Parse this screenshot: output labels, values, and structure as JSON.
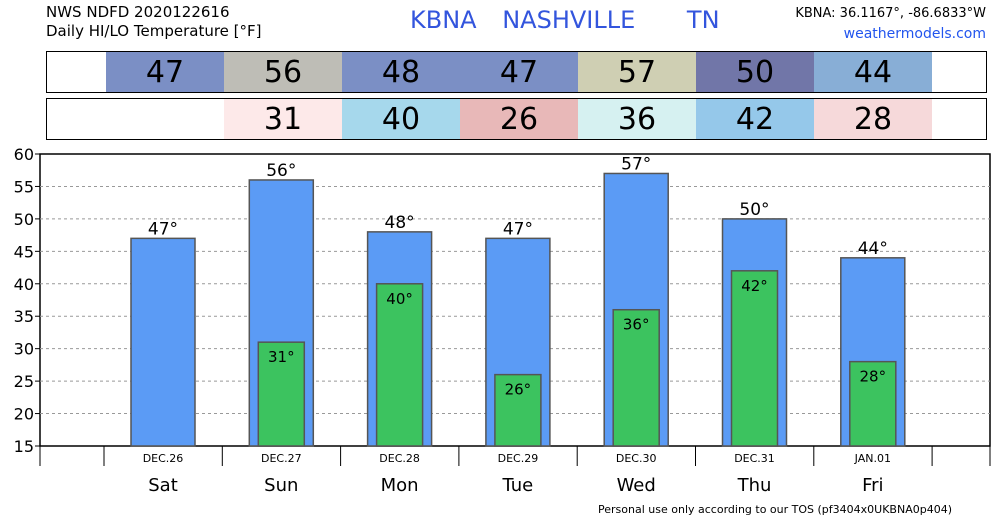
{
  "header": {
    "line1": "NWS NDFD 2020122616",
    "line2": "Daily HI/LO Temperature [°F]",
    "station": "KBNA",
    "city": "NASHVILLE",
    "state": "TN",
    "coords": "KBNA: 36.1167°, -86.6833°W",
    "site": "weathermodels.com"
  },
  "colors": {
    "hi_bar": "#5b9bf5",
    "lo_bar": "#3cc35f",
    "hi_cells": [
      "#7b8fc5",
      "#bebdb6",
      "#7b8fc5",
      "#7b8fc5",
      "#cfcfb3",
      "#7176a8",
      "#88aed6"
    ],
    "lo_cells": [
      null,
      "#fde9e9",
      "#a6d8ec",
      "#e8b8b8",
      "#d6f1f1",
      "#95c8ea",
      "#f6d9da"
    ]
  },
  "chart_data": {
    "type": "bar",
    "categories": [
      "Sat",
      "Sun",
      "Mon",
      "Tue",
      "Wed",
      "Thu",
      "Fri"
    ],
    "dates": [
      "DEC.26",
      "DEC.27",
      "DEC.28",
      "DEC.29",
      "DEC.30",
      "DEC.31",
      "JAN.01"
    ],
    "series": [
      {
        "values": [
          47,
          56,
          48,
          47,
          57,
          50,
          44
        ]
      },
      {
        "values": [
          null,
          31,
          40,
          26,
          36,
          42,
          28
        ]
      }
    ],
    "hi_labels": [
      "47°",
      "56°",
      "48°",
      "47°",
      "57°",
      "50°",
      "44°"
    ],
    "lo_labels": [
      "",
      "31°",
      "40°",
      "26°",
      "36°",
      "42°",
      "28°"
    ],
    "hi_display": [
      47,
      56,
      48,
      47,
      57,
      50,
      44
    ],
    "yticks": [
      15,
      20,
      25,
      30,
      35,
      40,
      45,
      50,
      55,
      60
    ],
    "ylim": [
      15,
      60
    ],
    "title": "",
    "xlabel": "",
    "ylabel": ""
  },
  "footer": "Personal use only according to our TOS (pf3404x0UKBNA0p404)"
}
